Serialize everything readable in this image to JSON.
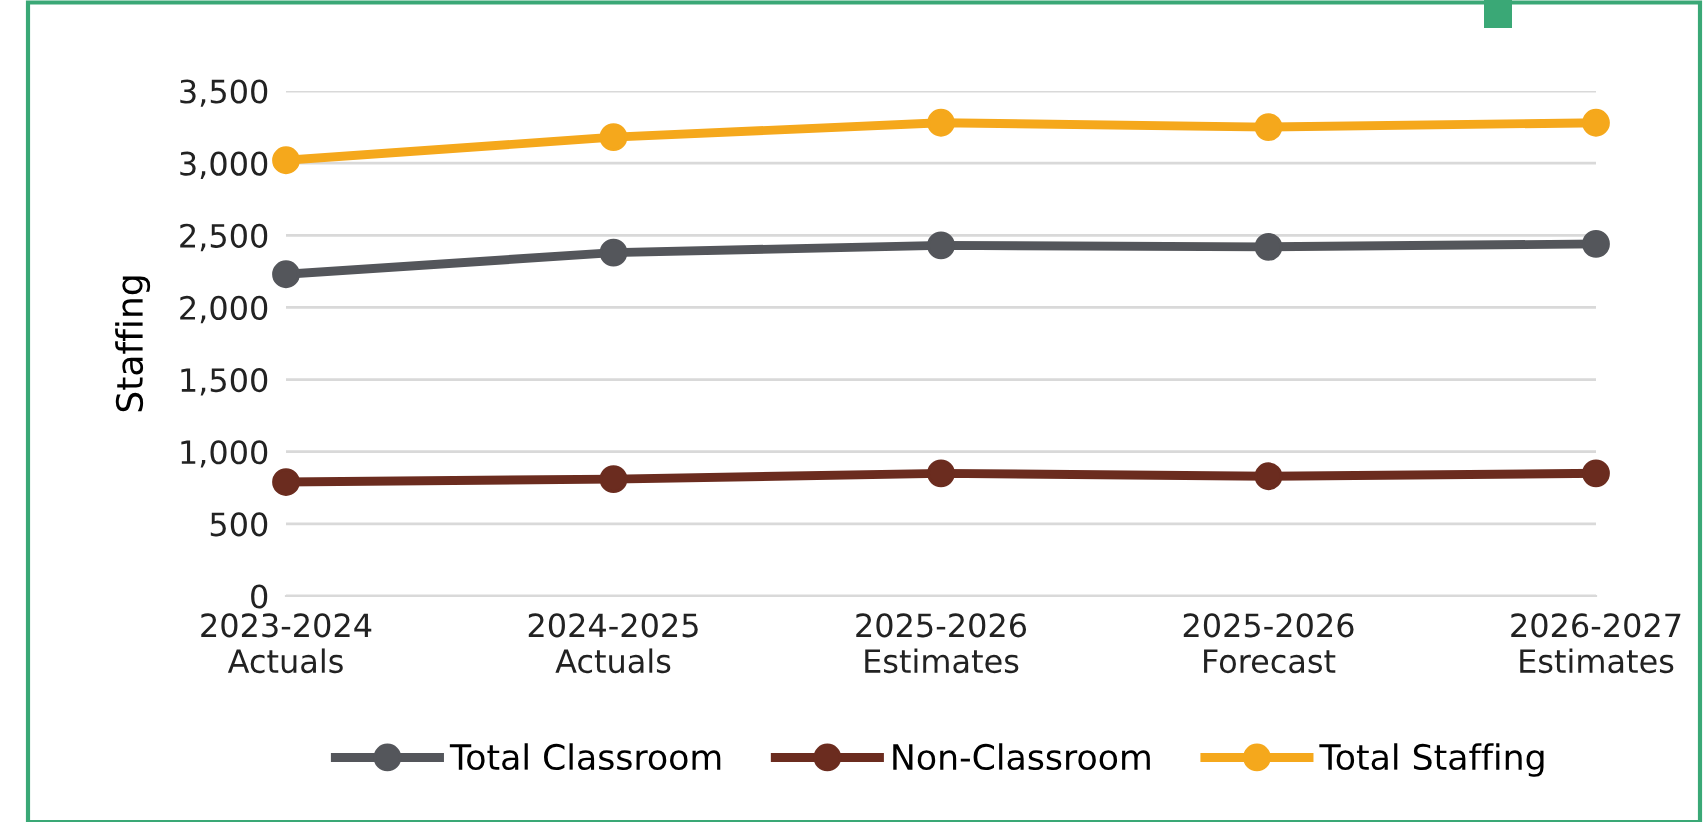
{
  "chart_data": {
    "type": "line",
    "ylabel": "Staffing",
    "categories": [
      "2023-2024\nActuals",
      "2024-2025\nActuals",
      "2025-2026\nEstimates",
      "2025-2026\nForecast",
      "2026-2027\nEstimates"
    ],
    "series": [
      {
        "name": "Total Classroom",
        "color": "#54565b",
        "values": [
          2230,
          2380,
          2430,
          2420,
          2440
        ]
      },
      {
        "name": "Non-Classroom",
        "color": "#6b2c1f",
        "values": [
          790,
          810,
          850,
          830,
          850
        ]
      },
      {
        "name": "Total Staffing",
        "color": "#f5a81c",
        "values": [
          3020,
          3180,
          3280,
          3250,
          3280
        ]
      }
    ],
    "ylim": [
      0,
      3500
    ],
    "yticks": [
      0,
      500,
      {
        "value": 1000,
        "label": "1,000"
      },
      {
        "value": 1500,
        "label": "1,500"
      },
      {
        "value": 2000,
        "label": "2,000"
      },
      {
        "value": 2500,
        "label": "2,500"
      },
      {
        "value": 3000,
        "label": "3,000"
      },
      {
        "value": 3500,
        "label": "3,500"
      }
    ],
    "grid": "y",
    "legend": "bottom",
    "marker": "circle",
    "line_style": "solid"
  }
}
